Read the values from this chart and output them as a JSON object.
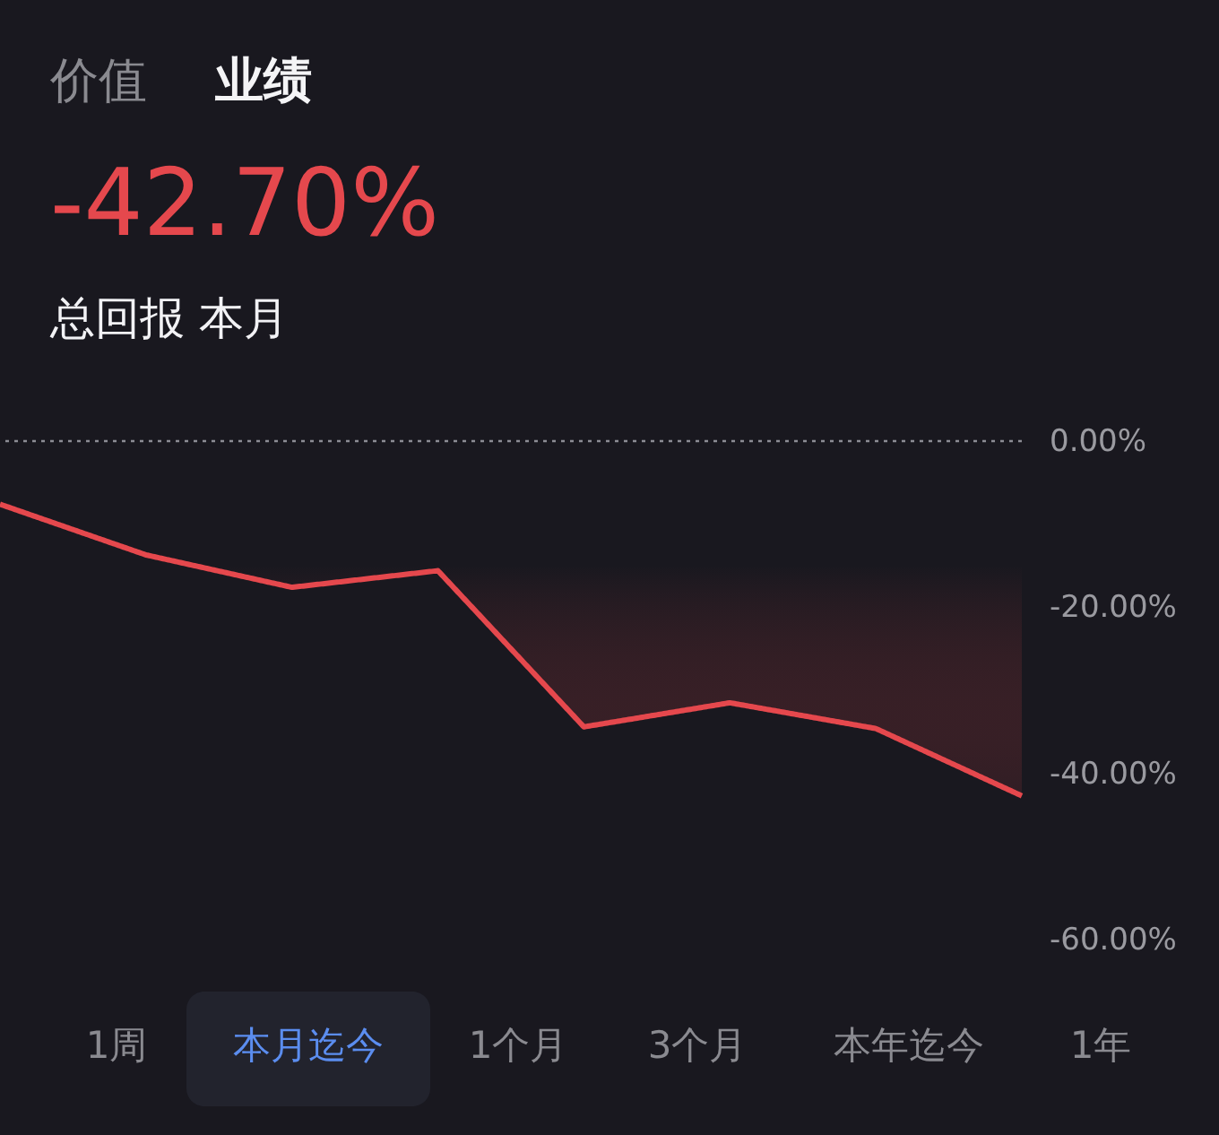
{
  "chart_data": {
    "type": "area",
    "title": "-42.70%",
    "subtitle": "总回报 本月",
    "annotations": [
      "价值",
      "业绩",
      "1周",
      "本月迄今",
      "1个月",
      "3个月",
      "本年迄今",
      "1年"
    ],
    "categories": [
      null,
      null,
      null,
      null,
      null,
      null,
      null,
      null
    ],
    "series": [
      {
        "color": "#e5484d",
        "values": [
          -7.6,
          -13.7,
          -17.6,
          -15.6,
          -34.4,
          -31.5,
          -34.6,
          -42.7
        ]
      }
    ],
    "ylim": [
      -60,
      0
    ],
    "yticks": [
      {
        "value": 0,
        "label": "0.00%"
      },
      {
        "value": -20,
        "label": "-20.00%"
      },
      {
        "value": -40,
        "label": "-40.00%"
      },
      {
        "value": -60,
        "label": "-60.00%"
      }
    ],
    "tick_labels": "y",
    "grid": false,
    "line_style": "solid",
    "ref_lines": [
      {
        "axis": "y",
        "value": 0,
        "color": "#8c8c94",
        "line_style": "dotted"
      }
    ]
  }
}
